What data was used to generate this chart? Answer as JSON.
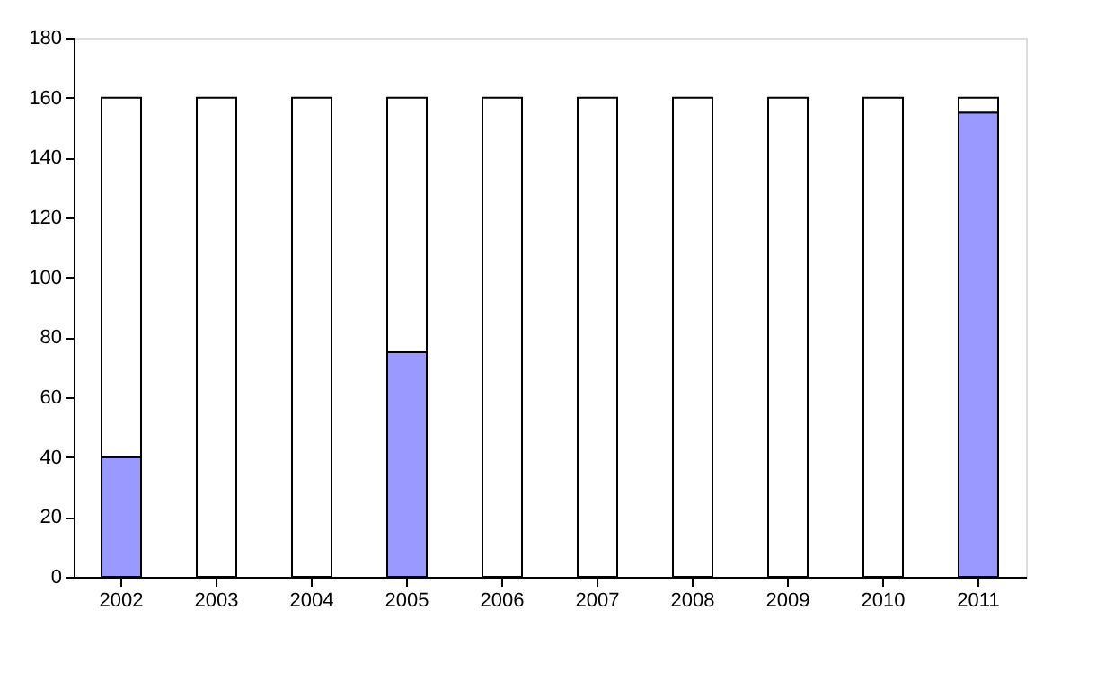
{
  "chart_data": {
    "type": "bar",
    "stacked": true,
    "categories": [
      "2002",
      "2003",
      "2004",
      "2005",
      "2006",
      "2007",
      "2008",
      "2009",
      "2010",
      "2011"
    ],
    "series": [
      {
        "color": "#9999ff",
        "values": [
          40,
          0,
          0,
          75,
          0,
          0,
          0,
          0,
          0,
          155
        ]
      },
      {
        "color": "#ffffff",
        "values": [
          120,
          160,
          160,
          85,
          160,
          160,
          160,
          160,
          160,
          5
        ]
      }
    ],
    "ylim": [
      0,
      180
    ],
    "yticks": [
      0,
      20,
      40,
      60,
      80,
      100,
      120,
      140,
      160,
      180
    ],
    "grid": false,
    "legend": false
  }
}
